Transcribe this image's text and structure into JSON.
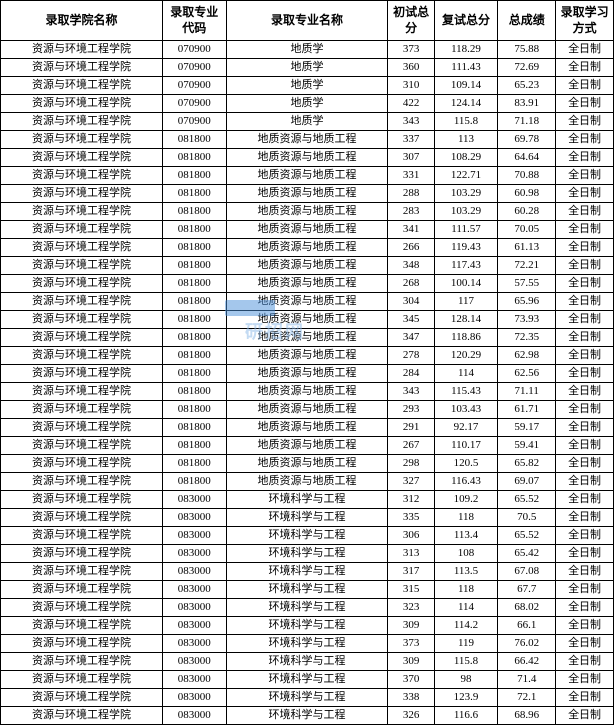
{
  "table": {
    "header_bg": "#ffffff",
    "border_color": "#000000",
    "font_family": "SimSun",
    "header_fontsize": 12,
    "cell_fontsize": 11,
    "columns": [
      {
        "key": "academy",
        "label": "录取学院名称",
        "width": 140
      },
      {
        "key": "code",
        "label": "录取专业代码",
        "width": 55
      },
      {
        "key": "major",
        "label": "录取专业名称",
        "width": 140
      },
      {
        "key": "first",
        "label": "初试总分",
        "width": 40
      },
      {
        "key": "retest",
        "label": "复试总分",
        "width": 55
      },
      {
        "key": "total",
        "label": "总成绩",
        "width": 50
      },
      {
        "key": "mode",
        "label": "录取学习方式",
        "width": 50
      }
    ],
    "rows": [
      [
        "资源与环境工程学院",
        "070900",
        "地质学",
        "373",
        "118.29",
        "75.88",
        "全日制"
      ],
      [
        "资源与环境工程学院",
        "070900",
        "地质学",
        "360",
        "111.43",
        "72.69",
        "全日制"
      ],
      [
        "资源与环境工程学院",
        "070900",
        "地质学",
        "310",
        "109.14",
        "65.23",
        "全日制"
      ],
      [
        "资源与环境工程学院",
        "070900",
        "地质学",
        "422",
        "124.14",
        "83.91",
        "全日制"
      ],
      [
        "资源与环境工程学院",
        "070900",
        "地质学",
        "343",
        "115.8",
        "71.18",
        "全日制"
      ],
      [
        "资源与环境工程学院",
        "081800",
        "地质资源与地质工程",
        "337",
        "113",
        "69.78",
        "全日制"
      ],
      [
        "资源与环境工程学院",
        "081800",
        "地质资源与地质工程",
        "307",
        "108.29",
        "64.64",
        "全日制"
      ],
      [
        "资源与环境工程学院",
        "081800",
        "地质资源与地质工程",
        "331",
        "122.71",
        "70.88",
        "全日制"
      ],
      [
        "资源与环境工程学院",
        "081800",
        "地质资源与地质工程",
        "288",
        "103.29",
        "60.98",
        "全日制"
      ],
      [
        "资源与环境工程学院",
        "081800",
        "地质资源与地质工程",
        "283",
        "103.29",
        "60.28",
        "全日制"
      ],
      [
        "资源与环境工程学院",
        "081800",
        "地质资源与地质工程",
        "341",
        "111.57",
        "70.05",
        "全日制"
      ],
      [
        "资源与环境工程学院",
        "081800",
        "地质资源与地质工程",
        "266",
        "119.43",
        "61.13",
        "全日制"
      ],
      [
        "资源与环境工程学院",
        "081800",
        "地质资源与地质工程",
        "348",
        "117.43",
        "72.21",
        "全日制"
      ],
      [
        "资源与环境工程学院",
        "081800",
        "地质资源与地质工程",
        "268",
        "100.14",
        "57.55",
        "全日制"
      ],
      [
        "资源与环境工程学院",
        "081800",
        "地质资源与地质工程",
        "304",
        "117",
        "65.96",
        "全日制"
      ],
      [
        "资源与环境工程学院",
        "081800",
        "地质资源与地质工程",
        "345",
        "128.14",
        "73.93",
        "全日制"
      ],
      [
        "资源与环境工程学院",
        "081800",
        "地质资源与地质工程",
        "347",
        "118.86",
        "72.35",
        "全日制"
      ],
      [
        "资源与环境工程学院",
        "081800",
        "地质资源与地质工程",
        "278",
        "120.29",
        "62.98",
        "全日制"
      ],
      [
        "资源与环境工程学院",
        "081800",
        "地质资源与地质工程",
        "284",
        "114",
        "62.56",
        "全日制"
      ],
      [
        "资源与环境工程学院",
        "081800",
        "地质资源与地质工程",
        "343",
        "115.43",
        "71.11",
        "全日制"
      ],
      [
        "资源与环境工程学院",
        "081800",
        "地质资源与地质工程",
        "293",
        "103.43",
        "61.71",
        "全日制"
      ],
      [
        "资源与环境工程学院",
        "081800",
        "地质资源与地质工程",
        "291",
        "92.17",
        "59.17",
        "全日制"
      ],
      [
        "资源与环境工程学院",
        "081800",
        "地质资源与地质工程",
        "267",
        "110.17",
        "59.41",
        "全日制"
      ],
      [
        "资源与环境工程学院",
        "081800",
        "地质资源与地质工程",
        "298",
        "120.5",
        "65.82",
        "全日制"
      ],
      [
        "资源与环境工程学院",
        "081800",
        "地质资源与地质工程",
        "327",
        "116.43",
        "69.07",
        "全日制"
      ],
      [
        "资源与环境工程学院",
        "083000",
        "环境科学与工程",
        "312",
        "109.2",
        "65.52",
        "全日制"
      ],
      [
        "资源与环境工程学院",
        "083000",
        "环境科学与工程",
        "335",
        "118",
        "70.5",
        "全日制"
      ],
      [
        "资源与环境工程学院",
        "083000",
        "环境科学与工程",
        "306",
        "113.4",
        "65.52",
        "全日制"
      ],
      [
        "资源与环境工程学院",
        "083000",
        "环境科学与工程",
        "313",
        "108",
        "65.42",
        "全日制"
      ],
      [
        "资源与环境工程学院",
        "083000",
        "环境科学与工程",
        "317",
        "113.5",
        "67.08",
        "全日制"
      ],
      [
        "资源与环境工程学院",
        "083000",
        "环境科学与工程",
        "315",
        "118",
        "67.7",
        "全日制"
      ],
      [
        "资源与环境工程学院",
        "083000",
        "环境科学与工程",
        "323",
        "114",
        "68.02",
        "全日制"
      ],
      [
        "资源与环境工程学院",
        "083000",
        "环境科学与工程",
        "309",
        "114.2",
        "66.1",
        "全日制"
      ],
      [
        "资源与环境工程学院",
        "083000",
        "环境科学与工程",
        "373",
        "119",
        "76.02",
        "全日制"
      ],
      [
        "资源与环境工程学院",
        "083000",
        "环境科学与工程",
        "309",
        "115.8",
        "66.42",
        "全日制"
      ],
      [
        "资源与环境工程学院",
        "083000",
        "环境科学与工程",
        "370",
        "98",
        "71.4",
        "全日制"
      ],
      [
        "资源与环境工程学院",
        "083000",
        "环境科学与工程",
        "338",
        "123.9",
        "72.1",
        "全日制"
      ],
      [
        "资源与环境工程学院",
        "083000",
        "环境科学与工程",
        "326",
        "116.6",
        "68.96",
        "全日制"
      ]
    ]
  },
  "watermark": {
    "text": "研招网",
    "color": "#8bb8e8",
    "badge_color": "#4a90d9"
  }
}
